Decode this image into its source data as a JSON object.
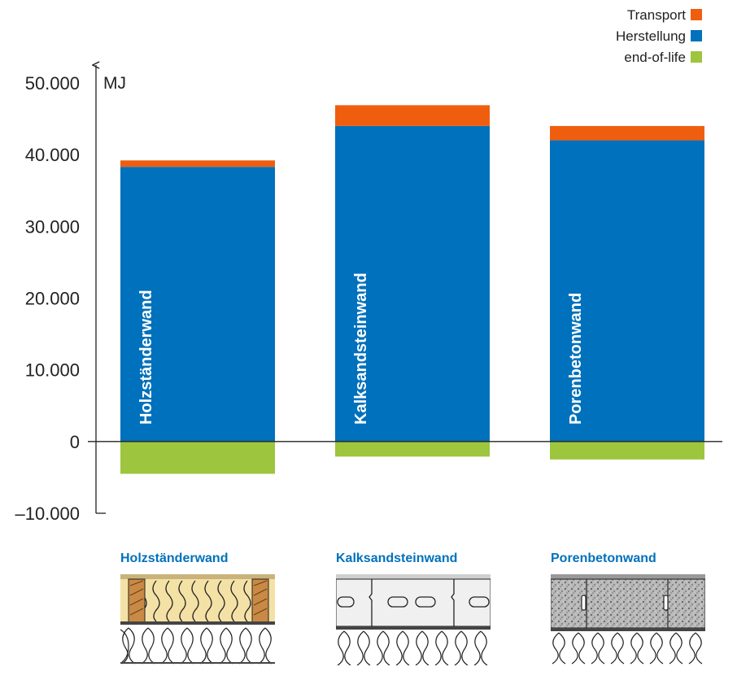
{
  "chart_data": {
    "type": "bar",
    "stacked": true,
    "unit": "MJ",
    "ylim": [
      -10000,
      50000
    ],
    "yticks": [
      50000,
      40000,
      30000,
      20000,
      10000,
      0,
      -10000
    ],
    "ytick_labels": [
      "50.000",
      "40.000",
      "30.000",
      "20.000",
      "10.000",
      "0",
      "–10.000"
    ],
    "categories": [
      "Holzständerwand",
      "Kalksandsteinwand",
      "Porenbetonwand"
    ],
    "series": [
      {
        "name": "Herstellung",
        "color": "#0071bc",
        "values": [
          38300,
          44000,
          42000
        ]
      },
      {
        "name": "Transport",
        "color": "#ef5e0f",
        "values": [
          900,
          2900,
          2000
        ]
      },
      {
        "name": "end-of-life",
        "color": "#9dc53e",
        "values": [
          -4500,
          -2100,
          -2500
        ]
      }
    ],
    "legend": {
      "placement": "top-right",
      "entries": [
        "Transport",
        "Herstellung",
        "end-of-life"
      ]
    },
    "grid": false
  },
  "wall_sections": [
    {
      "title": "Holzständerwand",
      "pattern": "timber-frame"
    },
    {
      "title": "Kalksandsteinwand",
      "pattern": "sand-lime-brick"
    },
    {
      "title": "Porenbetonwand",
      "pattern": "aerated-concrete"
    }
  ]
}
